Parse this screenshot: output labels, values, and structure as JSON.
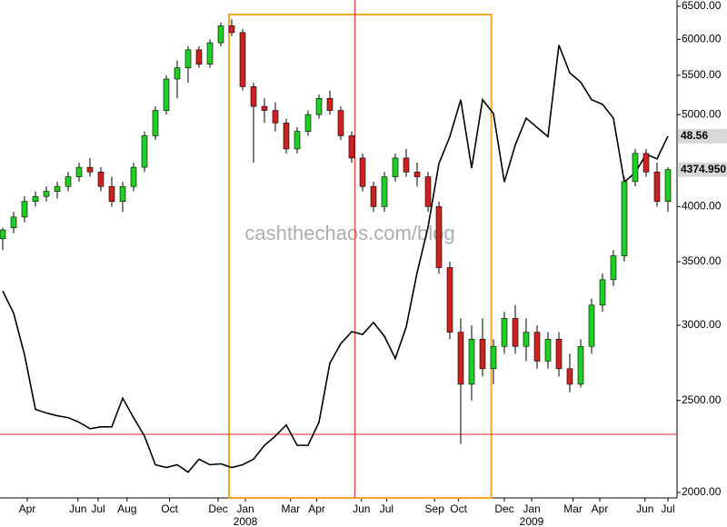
{
  "chart_data": {
    "type": "candlestick",
    "log_scale": true,
    "watermark": "cashthechaos.com/blog",
    "x": [
      0,
      1,
      2,
      3,
      4,
      5,
      6,
      7,
      8,
      9,
      10,
      11,
      12,
      13,
      14,
      15,
      16,
      17,
      18,
      19,
      20,
      21,
      22,
      23,
      24,
      25,
      26,
      27,
      28,
      29,
      30,
      31,
      32,
      33,
      34,
      35,
      36,
      37,
      38,
      39,
      40,
      41,
      42,
      43,
      44,
      45,
      46,
      47,
      48,
      49,
      50,
      51,
      52,
      53,
      54,
      55,
      56,
      57,
      58,
      59,
      60,
      61
    ],
    "xlim": [
      -0.25,
      61.75
    ],
    "xticks": [
      {
        "value": 2.25,
        "label": "Apr"
      },
      {
        "value": 6.9,
        "label": "Jun"
      },
      {
        "value": 8.75,
        "label": "Jul"
      },
      {
        "value": 11.4,
        "label": "Aug"
      },
      {
        "value": 15.3,
        "label": "Oct"
      },
      {
        "value": 19.75,
        "label": "Dec"
      },
      {
        "value": 22.25,
        "label": "Jan"
      },
      {
        "value": 26.4,
        "label": "Mar"
      },
      {
        "value": 28.8,
        "label": "Apr"
      },
      {
        "value": 32.9,
        "label": "Jun"
      },
      {
        "value": 35.2,
        "label": "Jul"
      },
      {
        "value": 39.6,
        "label": "Sep"
      },
      {
        "value": 41.8,
        "label": "Oct"
      },
      {
        "value": 46,
        "label": "Dec"
      },
      {
        "value": 48.5,
        "label": "Jan"
      },
      {
        "value": 52.3,
        "label": "Mar"
      },
      {
        "value": 54.75,
        "label": "Apr"
      },
      {
        "value": 58.9,
        "label": "Jun"
      },
      {
        "value": 61,
        "label": "Jul"
      }
    ],
    "year_labels": [
      {
        "value": 22.25,
        "label": "2008"
      },
      {
        "value": 48.5,
        "label": "2009"
      }
    ],
    "ylim": [
      2000,
      6500
    ],
    "yticks": [
      {
        "value": 2000,
        "label": "2000.00"
      },
      {
        "value": 2500,
        "label": "2500.00"
      },
      {
        "value": 3000,
        "label": "3000.00"
      },
      {
        "value": 3500,
        "label": "3500.00"
      },
      {
        "value": 4000,
        "label": "4000.00"
      },
      {
        "value": 5000,
        "label": "5000.00"
      },
      {
        "value": 5500,
        "label": "5500.00"
      },
      {
        "value": 6000,
        "label": "6000.00"
      },
      {
        "value": 6500,
        "label": "6500.00"
      }
    ],
    "y2lim": [
      10,
      62.6
    ],
    "up_color": "#22cc22",
    "down_color": "#cc2222",
    "ohlc": [
      [
        3700,
        3800,
        3600,
        3780
      ],
      [
        3800,
        3950,
        3750,
        3900
      ],
      [
        3900,
        4100,
        3850,
        4050
      ],
      [
        4050,
        4150,
        4000,
        4100
      ],
      [
        4100,
        4200,
        4050,
        4150
      ],
      [
        4150,
        4250,
        4080,
        4200
      ],
      [
        4200,
        4350,
        4150,
        4300
      ],
      [
        4300,
        4450,
        4250,
        4400
      ],
      [
        4400,
        4500,
        4300,
        4350
      ],
      [
        4350,
        4400,
        4150,
        4200
      ],
      [
        4200,
        4300,
        4000,
        4050
      ],
      [
        4050,
        4250,
        3950,
        4200
      ],
      [
        4200,
        4450,
        4150,
        4400
      ],
      [
        4400,
        4800,
        4350,
        4750
      ],
      [
        4750,
        5100,
        4700,
        5050
      ],
      [
        5050,
        5500,
        5000,
        5450
      ],
      [
        5450,
        5700,
        5200,
        5600
      ],
      [
        5600,
        5900,
        5400,
        5850
      ],
      [
        5850,
        5900,
        5600,
        5650
      ],
      [
        5650,
        6000,
        5600,
        5950
      ],
      [
        5950,
        6250,
        5900,
        6200
      ],
      [
        6200,
        6300,
        6050,
        6100
      ],
      [
        6100,
        6150,
        5300,
        5350
      ],
      [
        5350,
        5400,
        4450,
        5100
      ],
      [
        5100,
        5200,
        4900,
        5050
      ],
      [
        5050,
        5150,
        4800,
        4900
      ],
      [
        4900,
        4950,
        4550,
        4600
      ],
      [
        4600,
        4850,
        4550,
        4800
      ],
      [
        4800,
        5050,
        4750,
        5000
      ],
      [
        5000,
        5250,
        4950,
        5200
      ],
      [
        5200,
        5300,
        5000,
        5050
      ],
      [
        5050,
        5100,
        4700,
        4750
      ],
      [
        4750,
        4800,
        4450,
        4500
      ],
      [
        4500,
        4550,
        4150,
        4200
      ],
      [
        4200,
        4250,
        3950,
        4000
      ],
      [
        4000,
        4350,
        3950,
        4300
      ],
      [
        4300,
        4550,
        4250,
        4500
      ],
      [
        4500,
        4600,
        4300,
        4350
      ],
      [
        4350,
        4450,
        4200,
        4300
      ],
      [
        4300,
        4350,
        3950,
        4000
      ],
      [
        4000,
        4050,
        3400,
        3450
      ],
      [
        3450,
        3500,
        2900,
        2950
      ],
      [
        2950,
        3050,
        2250,
        2600
      ],
      [
        2600,
        3000,
        2500,
        2900
      ],
      [
        2900,
        3050,
        2650,
        2700
      ],
      [
        2700,
        2900,
        2600,
        2850
      ],
      [
        2850,
        3100,
        2800,
        3050
      ],
      [
        3050,
        3150,
        2800,
        2850
      ],
      [
        2850,
        3050,
        2750,
        2950
      ],
      [
        2950,
        3000,
        2700,
        2750
      ],
      [
        2750,
        2950,
        2700,
        2900
      ],
      [
        2900,
        2950,
        2650,
        2700
      ],
      [
        2700,
        2800,
        2550,
        2600
      ],
      [
        2600,
        2900,
        2580,
        2850
      ],
      [
        2850,
        3200,
        2800,
        3150
      ],
      [
        3150,
        3400,
        3100,
        3350
      ],
      [
        3350,
        3600,
        3300,
        3550
      ],
      [
        3550,
        4300,
        3500,
        4250
      ],
      [
        4250,
        4600,
        4200,
        4550
      ],
      [
        4550,
        4600,
        4300,
        4350
      ],
      [
        4350,
        4450,
        4000,
        4050
      ],
      [
        4050,
        4400,
        3950,
        4374.95
      ]
    ],
    "line": {
      "axis": "y2",
      "color": "#000000",
      "values": [
        31.8,
        29.4,
        24.9,
        19.0,
        18.6,
        18.3,
        18.1,
        17.6,
        16.9,
        17.1,
        17.1,
        20.2,
        18.1,
        16.1,
        13.0,
        12.7,
        13.0,
        12.2,
        13.6,
        13.0,
        13.1,
        12.7,
        13.0,
        13.6,
        15.1,
        16.1,
        17.3,
        15.1,
        15.1,
        17.6,
        24.0,
        26.1,
        27.4,
        27.1,
        28.4,
        26.9,
        24.5,
        27.9,
        33.8,
        38.7,
        45.6,
        48.5,
        52.5,
        45.1,
        52.5,
        51.0,
        43.6,
        47.6,
        50.5,
        49.5,
        48.5,
        58.4,
        55.4,
        54.4,
        52.5,
        52.0,
        50.5,
        43.6,
        44.6,
        46.6,
        46.1,
        48.56
      ]
    },
    "last_labels": [
      {
        "value": 48.56,
        "label": "48.56",
        "axis": "y2"
      },
      {
        "value": 4374.95,
        "label": "4374.950",
        "axis": "y"
      }
    ],
    "crosshair": {
      "x": 32.3,
      "y": 2303,
      "color": "#e02020"
    },
    "highlight_box": {
      "x": [
        20.75,
        44.8
      ],
      "color": "#f5a623"
    }
  }
}
